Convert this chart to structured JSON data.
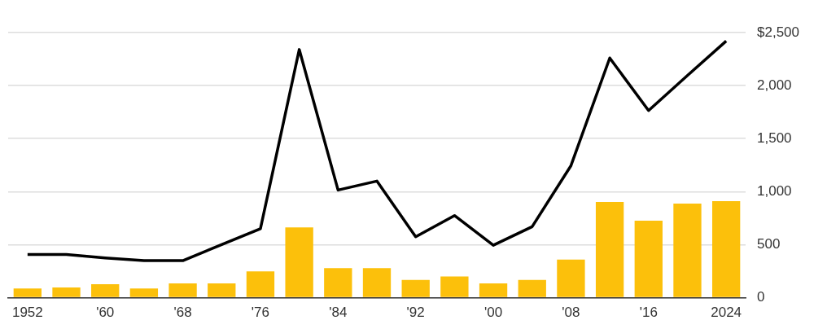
{
  "chart_data": {
    "type": "bar",
    "categories": [
      "1952",
      null,
      "'60",
      null,
      "'68",
      null,
      "'76",
      null,
      "'84",
      null,
      "'92",
      null,
      "'00",
      null,
      "'08",
      null,
      "'16",
      null,
      "2024"
    ],
    "series": [
      {
        "color": "#fcc00b",
        "values": [
          88,
          96,
          128,
          88,
          136,
          136,
          248,
          663,
          280,
          280,
          168,
          200,
          136,
          168,
          360,
          903,
          727,
          887,
          911
        ]
      },
      {
        "type": "line",
        "color": "#000000",
        "values": [
          407,
          407,
          375,
          350,
          350,
          500,
          650,
          2340,
          1015,
          1100,
          575,
          775,
          495,
          670,
          1245,
          2260,
          1765,
          2095,
          2420
        ]
      }
    ],
    "ylim": [
      0,
      2500
    ],
    "yticks": [
      {
        "value": 0,
        "label": "0"
      },
      {
        "value": 500,
        "label": "500"
      },
      {
        "value": 1000,
        "label": "1,000"
      },
      {
        "value": 1500,
        "label": "1,500"
      },
      {
        "value": 2000,
        "label": "2,000"
      },
      {
        "value": 2500,
        "label": "$2,500"
      }
    ],
    "grid": "y",
    "legend": false,
    "marker": "none",
    "line_style": "solid"
  }
}
